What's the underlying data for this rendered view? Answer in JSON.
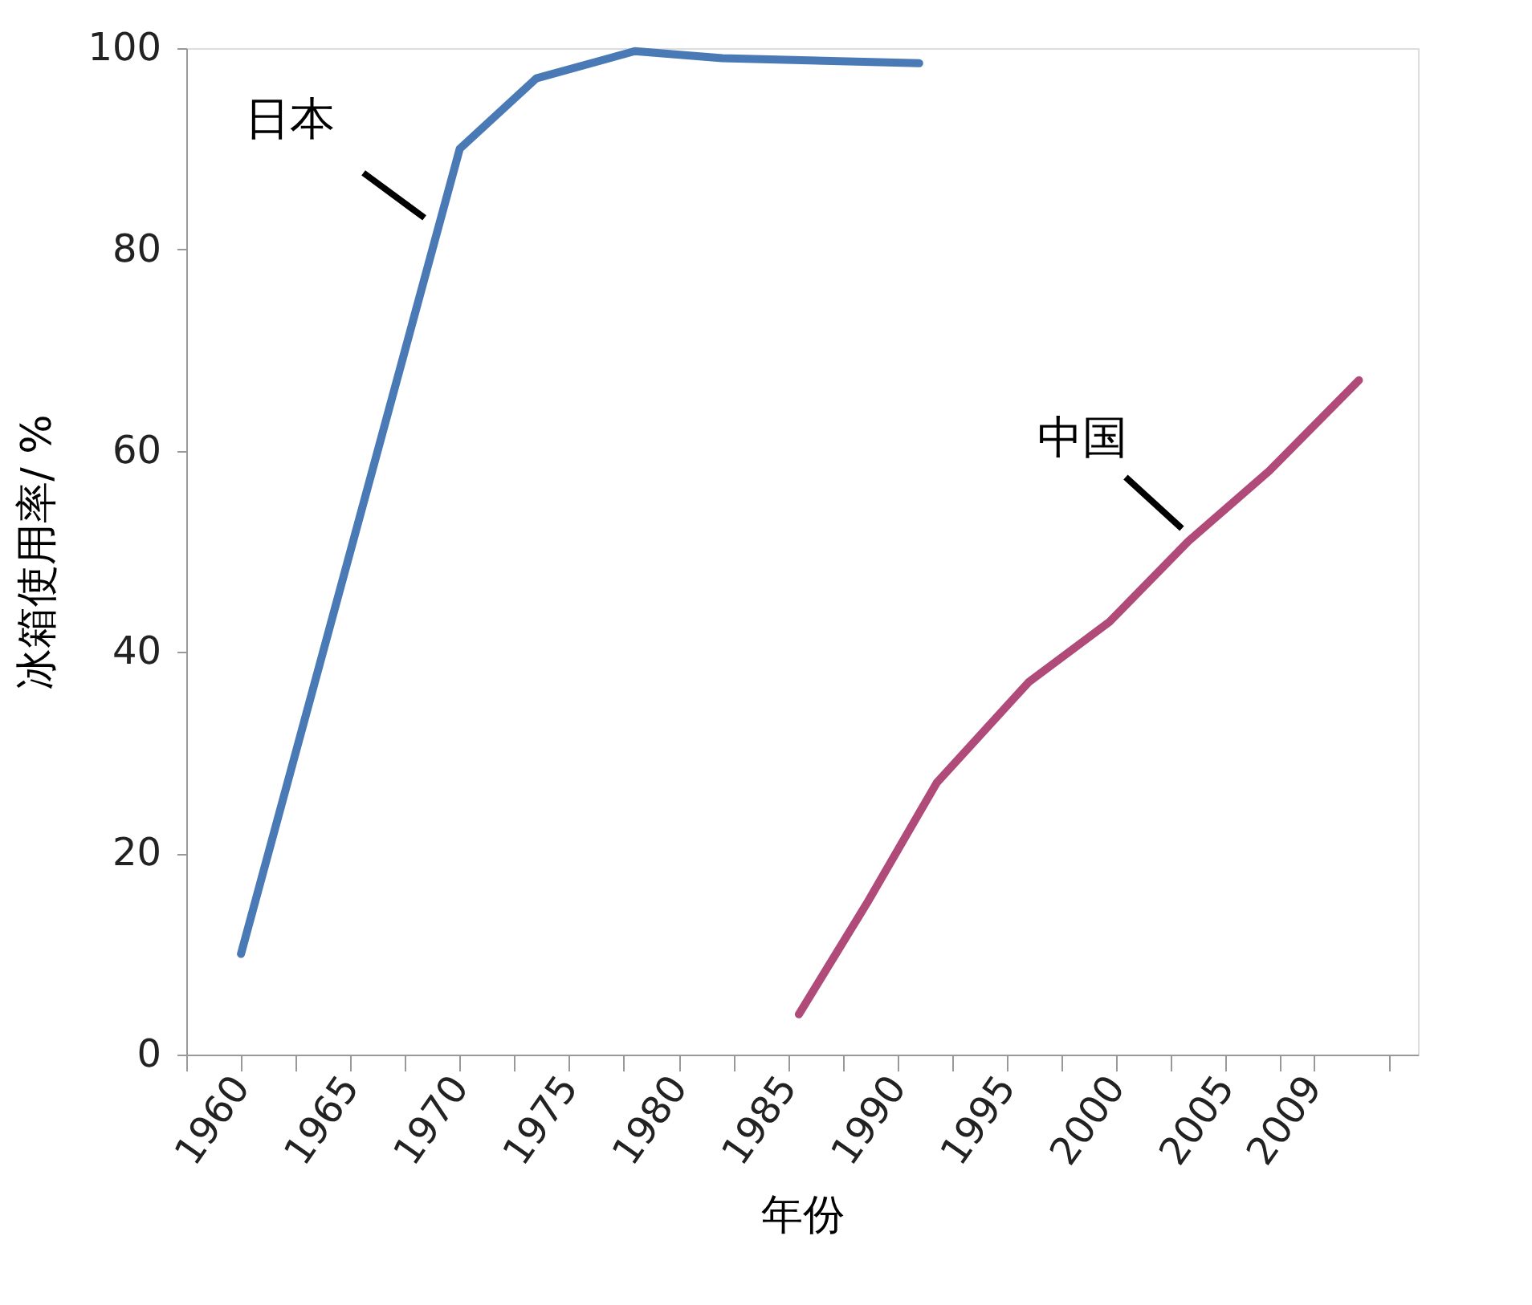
{
  "chart_data": {
    "type": "line",
    "xlabel": "年份",
    "ylabel": "冰箱使用率/ %",
    "xlim": [
      1957.5,
      2013.8
    ],
    "ylim": [
      0,
      100
    ],
    "yticks": [
      0,
      20,
      40,
      60,
      80,
      100
    ],
    "xticks": [
      {
        "value": 1957.5,
        "label": null
      },
      {
        "value": 1962.5,
        "label": null
      },
      {
        "value": 1967.5,
        "label": null
      },
      {
        "value": 1972.5,
        "label": null
      },
      {
        "value": 1977.5,
        "label": null
      },
      {
        "value": 1982.5,
        "label": null
      },
      {
        "value": 1987.5,
        "label": null
      },
      {
        "value": 1992.5,
        "label": null
      },
      {
        "value": 1997.5,
        "label": null
      },
      {
        "value": 2002.5,
        "label": null
      },
      {
        "value": 2007.5,
        "label": null
      },
      {
        "value": 2012.5,
        "label": null
      },
      1960,
      1965,
      1970,
      1975,
      1980,
      1985,
      1990,
      1995,
      2000,
      2005,
      2009
    ],
    "grid": false,
    "marker": "none",
    "line_style": "solid",
    "series": [
      {
        "name": "日本",
        "color": "#4a7ab5",
        "x": [
          1960,
          1970,
          1973.5,
          1978,
          1982,
          1991
        ],
        "values": [
          10,
          90,
          97,
          99.7,
          99,
          98.5
        ]
      },
      {
        "name": "中国",
        "color": "#b04a78",
        "x": [
          1985.5,
          1988.6,
          1991.8,
          1996,
          1999.7,
          2003.3,
          2007,
          2011.1
        ],
        "values": [
          4,
          15,
          27,
          37,
          43,
          51,
          58,
          67
        ]
      }
    ]
  }
}
